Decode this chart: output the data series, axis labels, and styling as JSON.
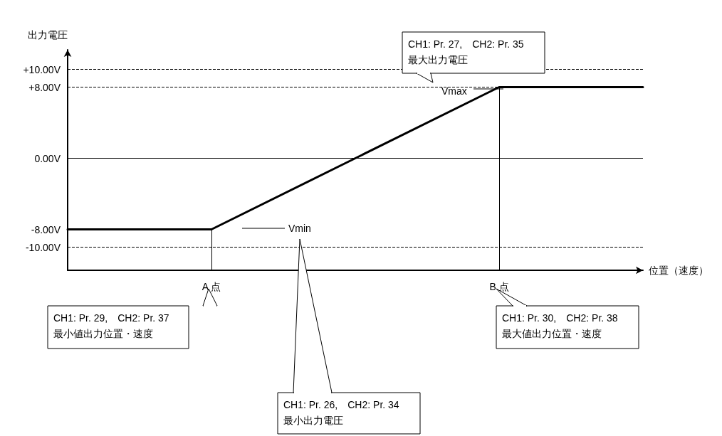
{
  "chart_data": {
    "type": "line",
    "ylabel": "出力電圧",
    "xlabel": "位置（速度）",
    "categories": [
      null,
      "A 点",
      null,
      "B 点",
      null
    ],
    "values": [
      -8,
      -8,
      0,
      8,
      8
    ],
    "color": "#000000",
    "line_style": "solid",
    "marker": "none",
    "ylim": [
      -12.6,
      12.2
    ],
    "yticks": [
      {
        "value": -10,
        "label": "-10.00V"
      },
      {
        "value": -8,
        "label": "-8.00V"
      },
      {
        "value": 0,
        "label": "0.00V"
      },
      {
        "value": 8,
        "label": "+8.00V"
      },
      {
        "value": 10,
        "label": "+10.00V"
      }
    ],
    "ref_lines": [
      {
        "axis": "y",
        "value": 10,
        "line_style": "dashed"
      },
      {
        "axis": "y",
        "value": 8,
        "line_style": "dashed"
      },
      {
        "axis": "y",
        "value": 0,
        "line_style": "solid"
      },
      {
        "axis": "y",
        "value": -10,
        "line_style": "dashed"
      },
      {
        "axis": "x",
        "value": "A 点",
        "line_style": "solid"
      },
      {
        "axis": "x",
        "value": "B 点",
        "line_style": "solid"
      }
    ],
    "annotations": [
      "Vmax",
      "Vmin",
      "CH1: Pr. 27,　CH2: Pr. 35\n最大出力電圧",
      "CH1: Pr. 29,　CH2: Pr. 37\n最小値出力位置・速度",
      "CH1: Pr. 30,　CH2: Pr. 38\n最大値出力位置・速度",
      "CH1: Pr. 26,　CH2: Pr. 34\n最小出力電圧"
    ]
  }
}
